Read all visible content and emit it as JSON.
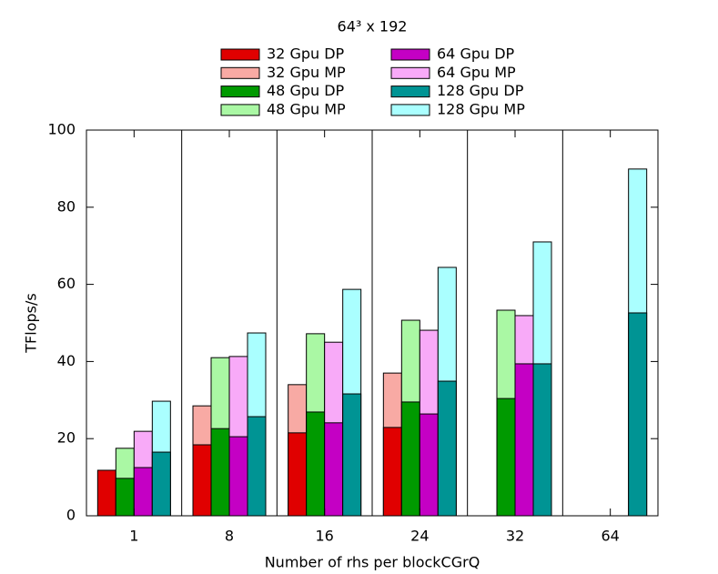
{
  "chart_data": {
    "type": "overlay_bar",
    "title": "64³ x 192",
    "x_label": "Number of rhs per blockCGrQ",
    "y_label": "TFlops/s",
    "categories": [
      "1",
      "8",
      "16",
      "24",
      "32",
      "64"
    ],
    "ylim": [
      0,
      100
    ],
    "yticks": [
      0,
      20,
      40,
      60,
      80,
      100
    ],
    "series": [
      {
        "name": "32 Gpu DP",
        "color": "#e00000",
        "values": [
          11.8,
          18.4,
          21.5,
          22.9,
          null,
          null
        ]
      },
      {
        "name": "32 Gpu MP",
        "color": "#f8aaa4",
        "values": [
          null,
          28.5,
          34.0,
          37.0,
          null,
          null
        ]
      },
      {
        "name": "48 Gpu DP",
        "color": "#009a00",
        "values": [
          9.7,
          22.6,
          26.9,
          29.5,
          30.4,
          null
        ]
      },
      {
        "name": "48 Gpu MP",
        "color": "#aaf8a4",
        "values": [
          17.5,
          41.0,
          47.2,
          50.7,
          53.3,
          null
        ]
      },
      {
        "name": "64 Gpu DP",
        "color": "#c400c4",
        "values": [
          12.5,
          20.5,
          24.1,
          26.4,
          39.4,
          null
        ]
      },
      {
        "name": "64 Gpu MP",
        "color": "#f8aaf8",
        "values": [
          21.9,
          41.3,
          45.0,
          48.1,
          51.9,
          null
        ]
      },
      {
        "name": "128 Gpu DP",
        "color": "#009494",
        "values": [
          16.5,
          25.7,
          31.6,
          34.9,
          39.4,
          52.6
        ]
      },
      {
        "name": "128 Gpu MP",
        "color": "#aaffff",
        "values": [
          29.7,
          47.4,
          58.7,
          64.4,
          71.0,
          89.9
        ]
      }
    ]
  }
}
